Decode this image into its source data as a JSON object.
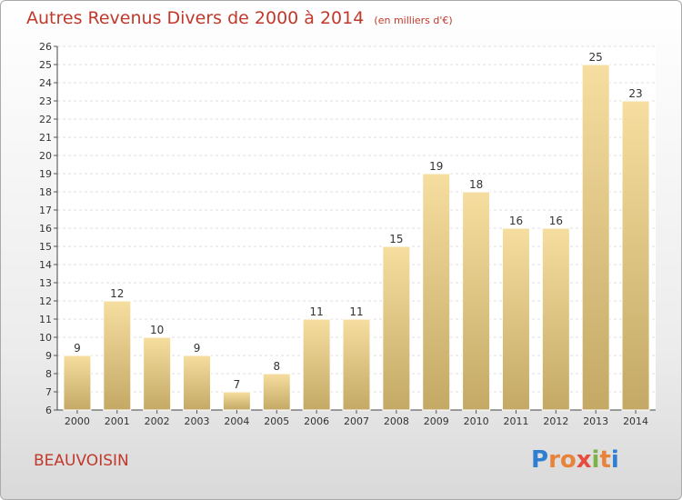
{
  "chart_data": {
    "type": "bar",
    "title": "Autres Revenus Divers de 2000 à 2014",
    "subtitle": "(en milliers d'€)",
    "categories": [
      "2000",
      "2001",
      "2002",
      "2003",
      "2004",
      "2005",
      "2006",
      "2007",
      "2008",
      "2009",
      "2010",
      "2011",
      "2012",
      "2013",
      "2014"
    ],
    "values": [
      9,
      12,
      10,
      9,
      7,
      8,
      11,
      11,
      15,
      19,
      18,
      16,
      16,
      25,
      23
    ],
    "ylim": [
      6,
      26
    ],
    "yticks": [
      6,
      7,
      8,
      9,
      10,
      11,
      12,
      13,
      14,
      15,
      16,
      17,
      18,
      19,
      20,
      21,
      22,
      23,
      24,
      25,
      26
    ],
    "grid": true,
    "bar_color_top": "#f6dea0",
    "bar_color_bottom": "#c4a965"
  },
  "footer": {
    "city": "BEAUVOISIN",
    "logo": "Proxiti"
  },
  "colors": {
    "title": "#c0392b",
    "logo_letters": [
      "#2e7fd1",
      "#e8833a",
      "#e8833a",
      "#e74c3c",
      "#7cb342",
      "#e8833a",
      "#2e7fd1"
    ]
  }
}
